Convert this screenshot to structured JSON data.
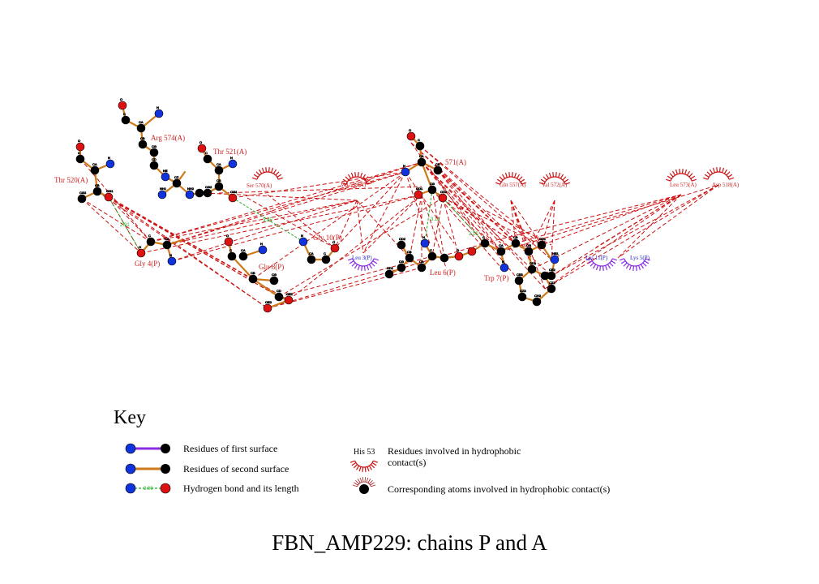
{
  "caption": "FBN_AMP229: chains P and A",
  "key": {
    "title": "Key",
    "first_surface": "Residues of first surface",
    "second_surface": "Residues of second surface",
    "hbond": "Hydrogen bond and its length",
    "hbond_sample": "3.00",
    "hydrophobic_residue_sample": "His 53",
    "hydrophobic_residues": "Residues involved in hydrophobic contact(s)",
    "hydrophobic_atoms": "Corresponding atoms involved in hydrophobic contact(s)"
  },
  "colors": {
    "first_surface_bond": "#8a2be2",
    "second_surface_bond": "#cc7a1a",
    "hbond": "#22aa22",
    "contact": "#cc1111",
    "nitrogen": "#1133dd",
    "oxygen": "#dd1111",
    "carbon": "#000000"
  },
  "residue_labels": {
    "arg574": "Arg 574(A)",
    "thr521": "Thr 521(A)",
    "thr520": "Thr 520(A)",
    "ser570": "Ser 570(A)",
    "val558": "Val 558(A)",
    "res571": "571(A)",
    "gln557": "Gln 557(A)",
    "val572": "Val 572(A)",
    "leu573": "Leu 573(A)",
    "asp518": "Asp 518(A)",
    "gly4": "Gly 4(P)",
    "glu8": "Glu 8(P)",
    "gly10": "Gly 10(P)",
    "leu3": "Leu 3(P)",
    "leu6": "Leu 6(P)",
    "trp7": "Trp 7(P)",
    "lys11": "Lys 11(P)",
    "lys5": "Lys 5(P)"
  },
  "hbond_distances": {
    "d1": "2.91",
    "d2": "3.25",
    "d3": "3.11",
    "d4": "3.10"
  }
}
